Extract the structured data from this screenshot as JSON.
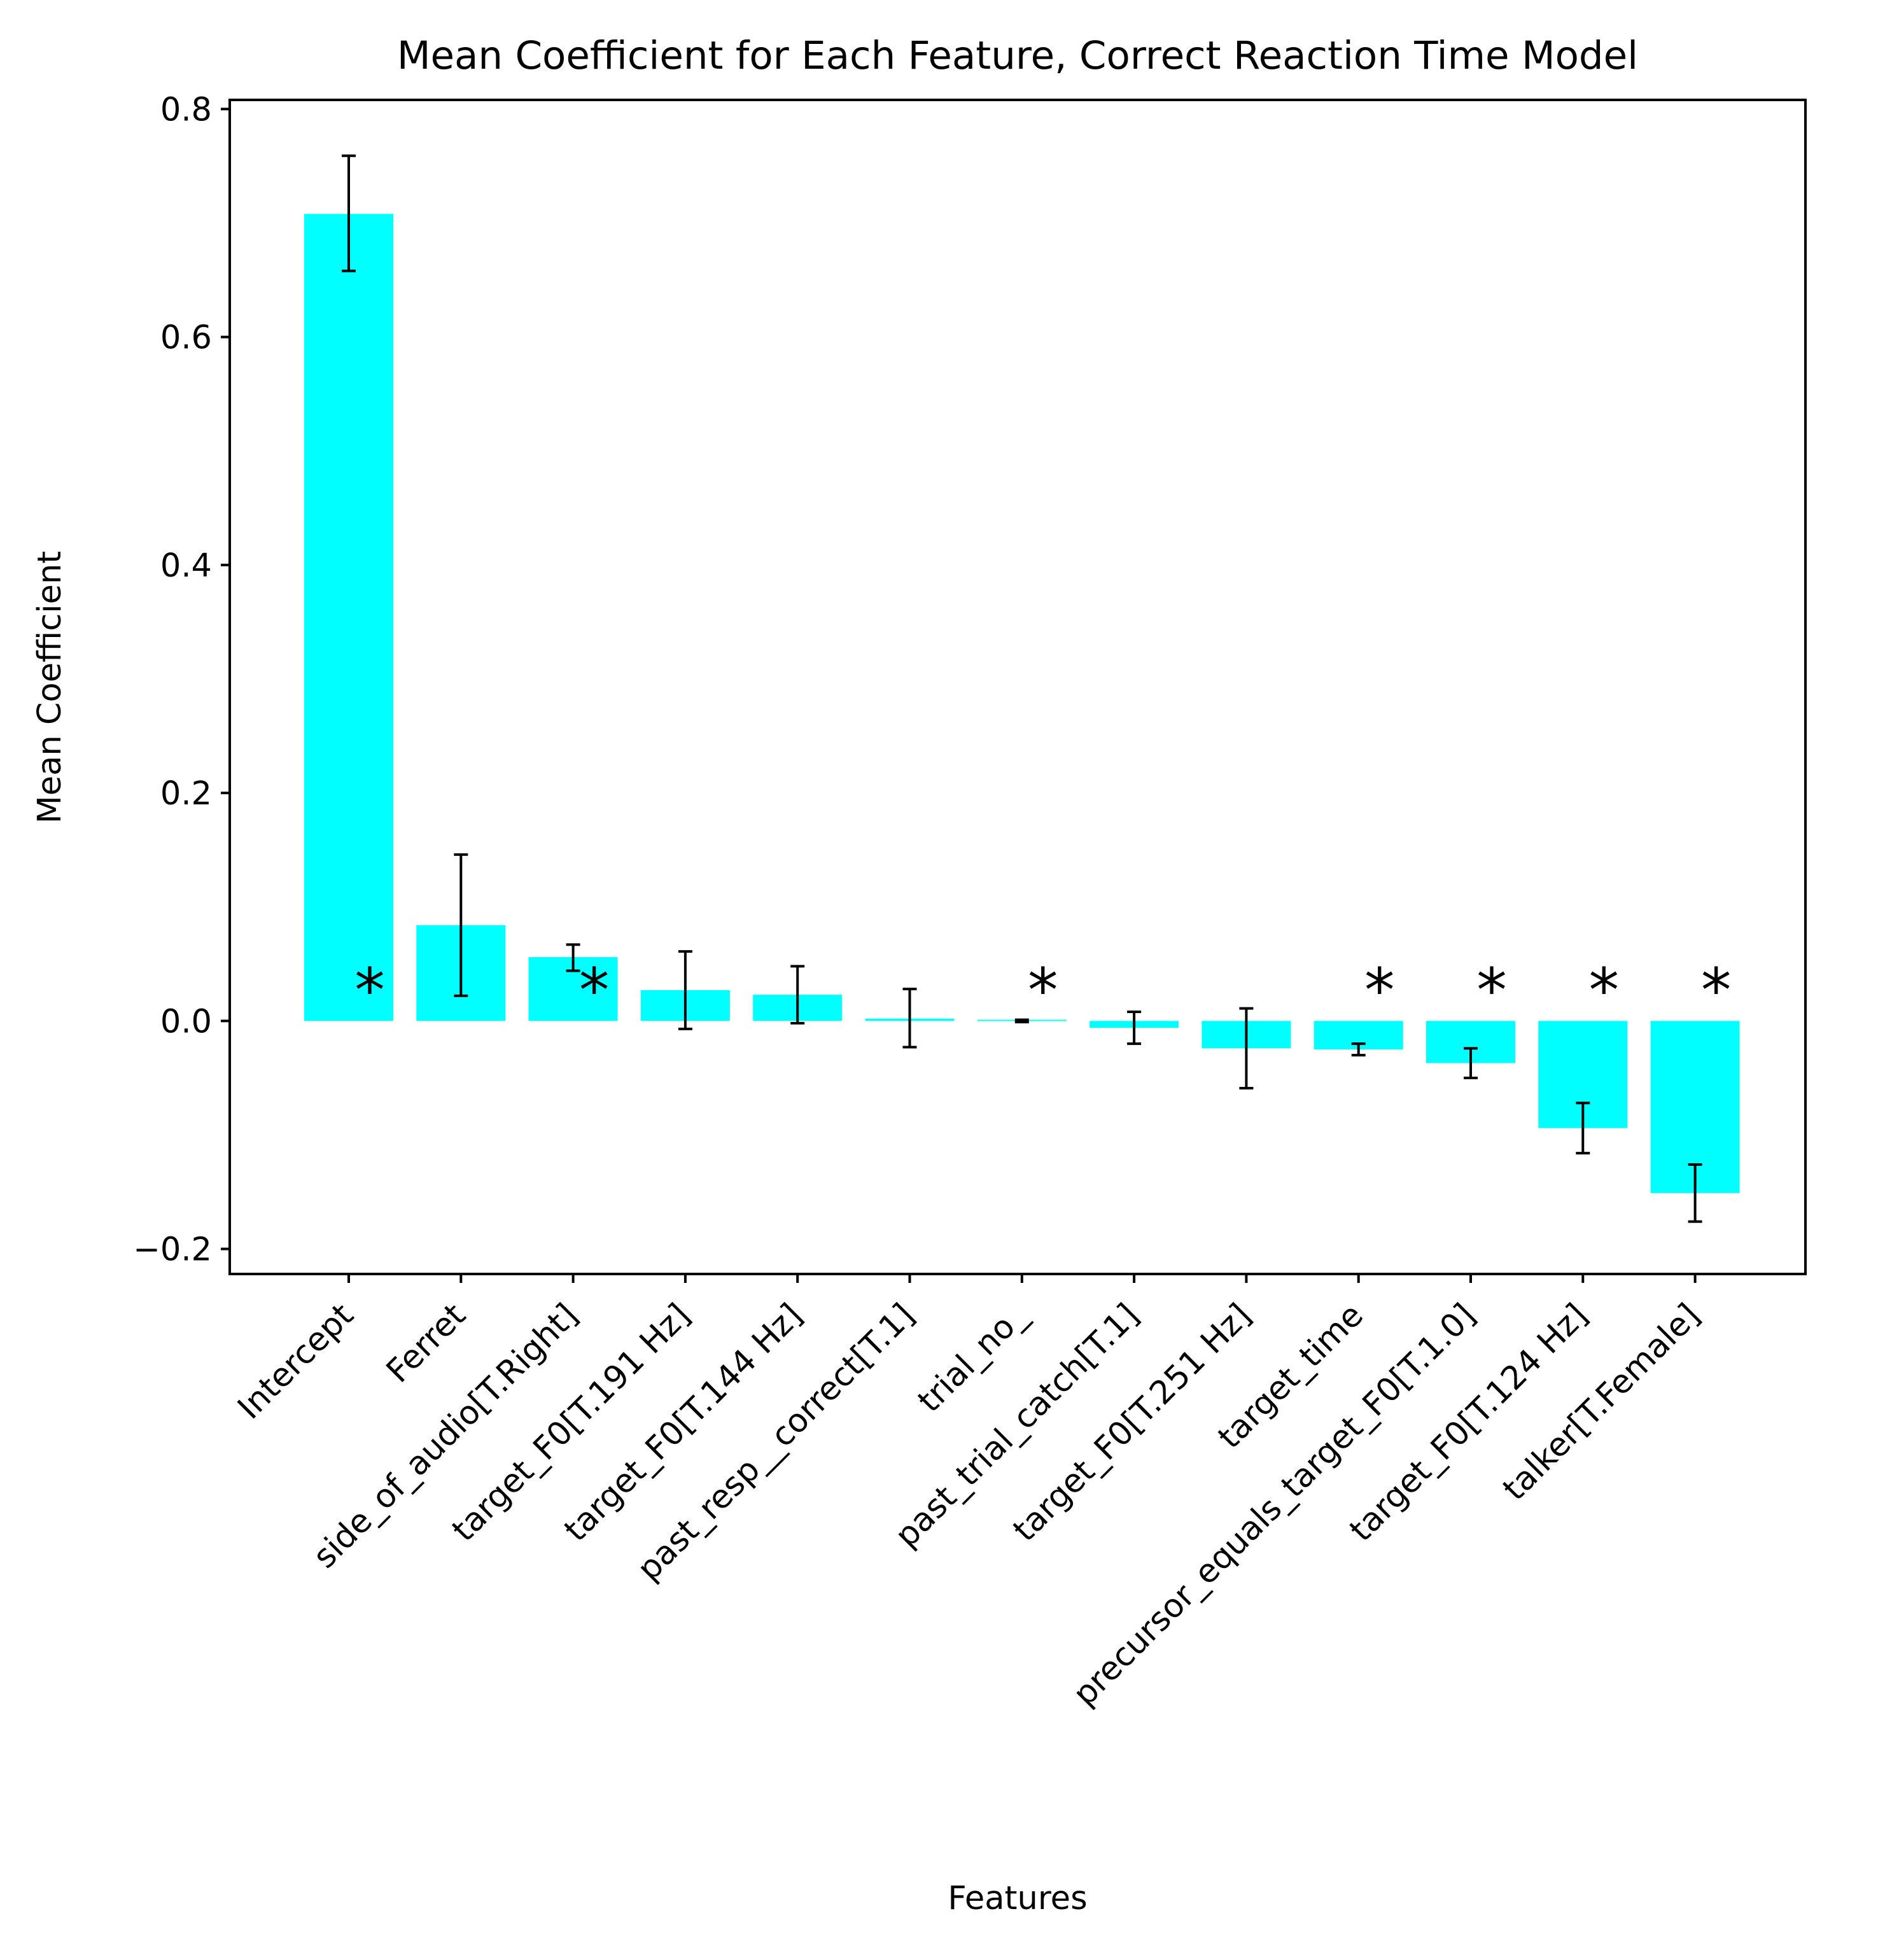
{
  "chart_data": {
    "type": "bar",
    "title": "Mean Coefficient for Each Feature, Correct Reaction Time Model",
    "xlabel": "Features",
    "ylabel": "Mean Coefficient",
    "ylim": [
      -0.222,
      0.808
    ],
    "yticks": [
      -0.2,
      0.0,
      0.2,
      0.4,
      0.6,
      0.8
    ],
    "ytick_labels": [
      "−0.2",
      "0.0",
      "0.2",
      "0.4",
      "0.6",
      "0.8"
    ],
    "grid": false,
    "legend": "none",
    "bar_color": "#00ffff",
    "errorbar_color": "#000000",
    "significance_marker": "*",
    "categories": [
      "Intercept",
      "Ferret",
      "side_of_audio[T.Right]",
      "target_F0[T.191 Hz]",
      "target_F0[T.144 Hz]",
      "past_resp__correct[T.1]",
      "trial_no_",
      "past_trial_catch[T.1]",
      "target_F0[T.251 Hz]",
      "target_time",
      "precursor_equals_target_F0[T.1.0]",
      "target_F0[T.124 Hz]",
      "talker[T.Female]"
    ],
    "values": [
      0.708,
      0.084,
      0.056,
      0.027,
      0.023,
      0.002,
      0.001,
      -0.006,
      -0.024,
      -0.025,
      -0.037,
      -0.094,
      -0.151
    ],
    "error_low": [
      0.658,
      0.022,
      0.044,
      -0.007,
      -0.002,
      -0.023,
      -0.001,
      -0.02,
      -0.059,
      -0.03,
      -0.05,
      -0.116,
      -0.176
    ],
    "error_high": [
      0.759,
      0.146,
      0.067,
      0.061,
      0.048,
      0.028,
      0.001,
      0.008,
      0.011,
      -0.02,
      -0.024,
      -0.072,
      -0.126
    ],
    "significant": [
      true,
      false,
      true,
      false,
      false,
      false,
      true,
      false,
      false,
      true,
      true,
      true,
      true
    ]
  }
}
